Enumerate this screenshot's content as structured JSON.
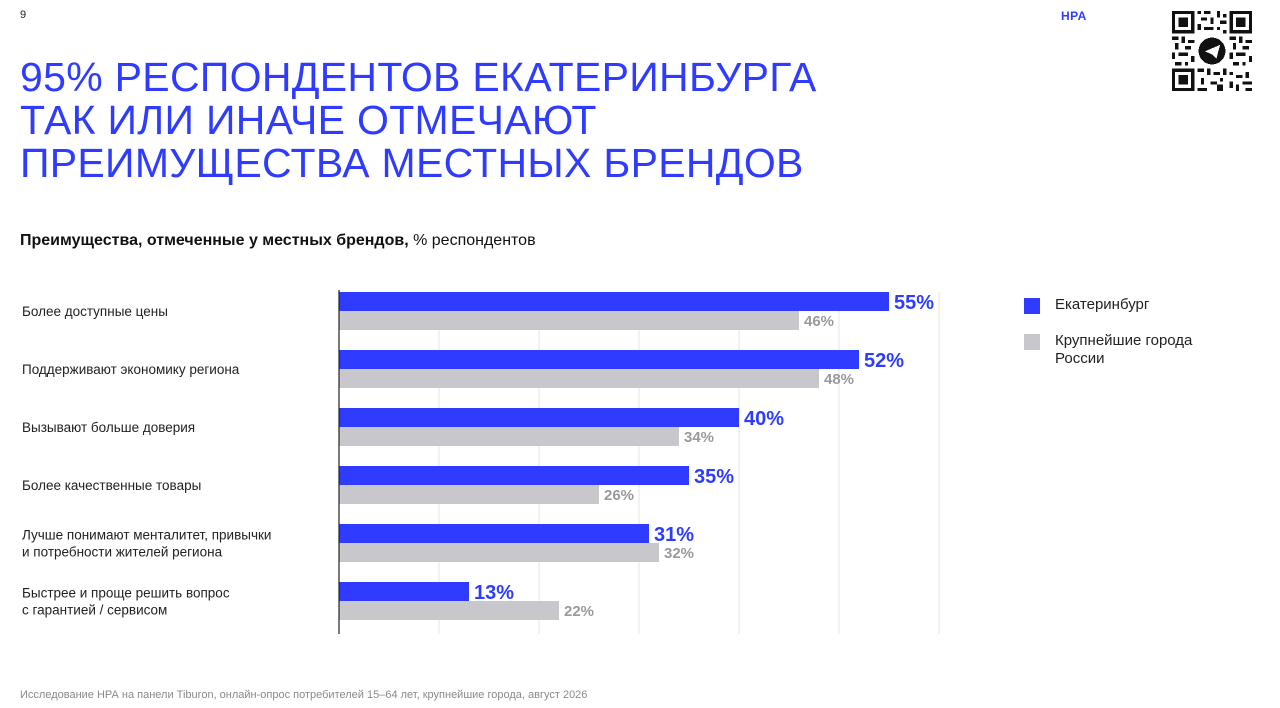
{
  "page": {
    "number": "9",
    "brand": "НРА"
  },
  "headline": [
    "95% РЕСПОНДЕНТОВ ЕКАТЕРИНБУРГА",
    "ТАК ИЛИ ИНАЧЕ ОТМЕЧАЮТ",
    "ПРЕИМУЩЕСТВА МЕСТНЫХ БРЕНДОВ"
  ],
  "qr": {
    "icon": "qr-code-icon",
    "center_icon": "telegram-plane-icon"
  },
  "colors": {
    "accent": "#2f3cff",
    "ekb": "#2f3cff",
    "russia": "#c8c8cc",
    "russia_label": "#9a9a9e"
  },
  "chart_data": {
    "type": "bar",
    "orientation": "horizontal",
    "title": "Преимущества, отмеченные у местных брендов,",
    "unit_label": "% респондентов",
    "categories": [
      [
        "Более доступные цены"
      ],
      [
        "Поддерживают экономику региона"
      ],
      [
        "Вызывают больше доверия"
      ],
      [
        "Более качественные товары"
      ],
      [
        "Лучше понимают менталитет, привычки",
        "и потребности жителей региона"
      ],
      [
        "Быстрее и проще решить вопрос",
        "с гарантией / сервисом"
      ]
    ],
    "series": [
      {
        "name": "Екатеринбург",
        "values": [
          55,
          52,
          40,
          35,
          31,
          13
        ]
      },
      {
        "name": "Крупнейшие города России",
        "values": [
          46,
          48,
          34,
          26,
          32,
          22
        ]
      }
    ],
    "value_suffix": "%",
    "xlim": [
      0,
      60
    ],
    "grid": true,
    "legend": "right"
  },
  "legend": [
    {
      "label": "Екатеринбург"
    },
    {
      "label": "Крупнейшие города\nРоссии"
    }
  ],
  "footnote": "Исследование НРА на панели Tiburon, онлайн-опрос потребителей 15–64 лет, крупнейшие города, август 2026"
}
